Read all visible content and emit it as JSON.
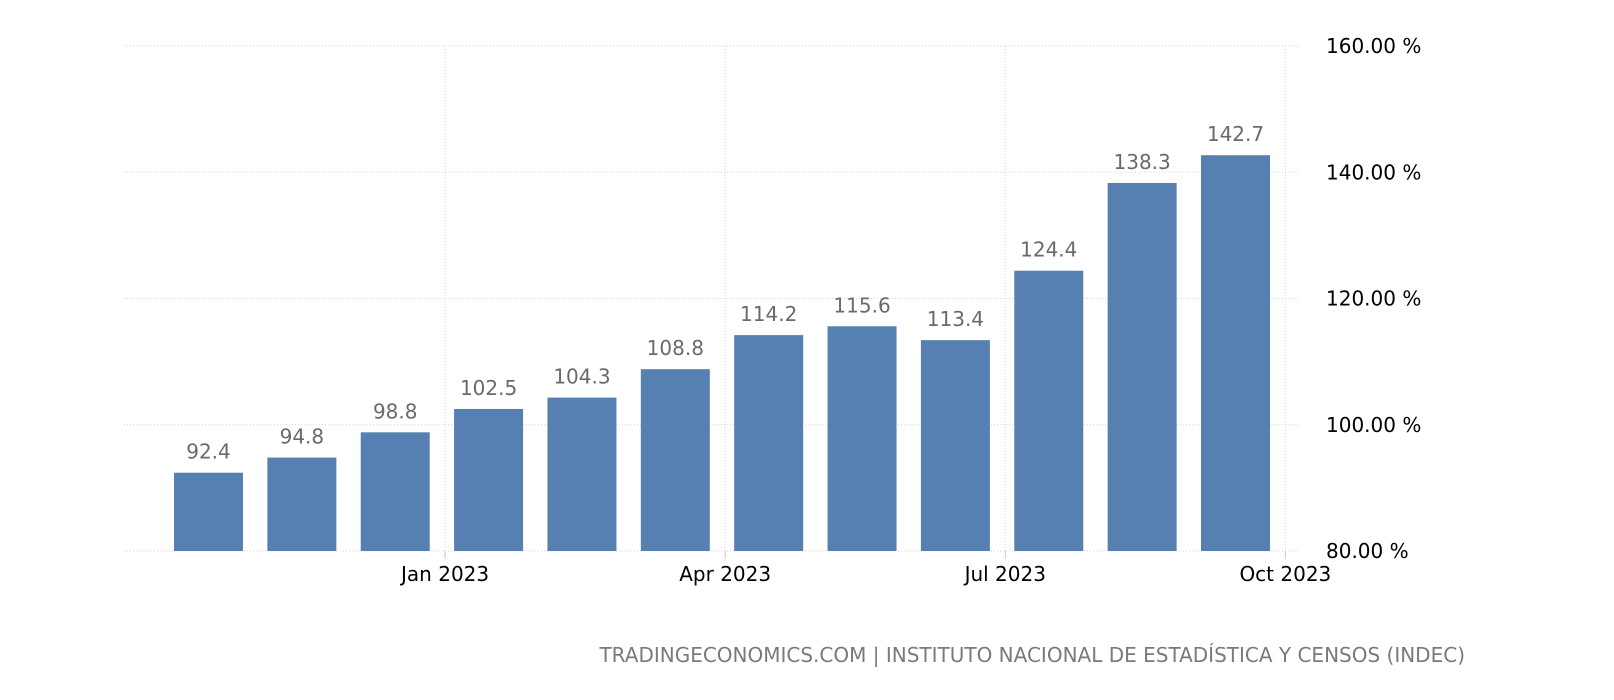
{
  "chart_data": {
    "type": "bar",
    "x": [
      "2022-10",
      "2022-11",
      "2022-12",
      "2023-01",
      "2023-02",
      "2023-03",
      "2023-04",
      "2023-05",
      "2023-06",
      "2023-07",
      "2023-08",
      "2023-09"
    ],
    "values": [
      92.4,
      94.8,
      98.8,
      102.5,
      104.3,
      108.8,
      114.2,
      115.6,
      113.4,
      124.4,
      138.3,
      142.7
    ],
    "data_labels": [
      "92.4",
      "94.8",
      "98.8",
      "102.5",
      "104.3",
      "108.8",
      "114.2",
      "115.6",
      "113.4",
      "124.4",
      "138.3",
      "142.7"
    ],
    "x_tick_labels": [
      "Jan 2023",
      "Apr 2023",
      "Jul 2023",
      "Oct 2023"
    ],
    "x_tick_dates": [
      "2023-01-01",
      "2023-04-01",
      "2023-07-01",
      "2023-10-01"
    ],
    "y_tick_values": [
      80,
      100,
      120,
      140,
      160
    ],
    "y_tick_labels": [
      "80.00 %",
      "100.00 %",
      "120.00 %",
      "140.00 %",
      "160.00 %"
    ],
    "ylim": [
      80,
      160
    ],
    "y_axis_side": "right",
    "grid": true,
    "bar_color": "#5580b1",
    "title": "",
    "xlabel": "",
    "ylabel": ""
  },
  "source": "TRADINGECONOMICS.COM | INSTITUTO NACIONAL DE ESTADÍSTICA Y CENSOS (INDEC)"
}
